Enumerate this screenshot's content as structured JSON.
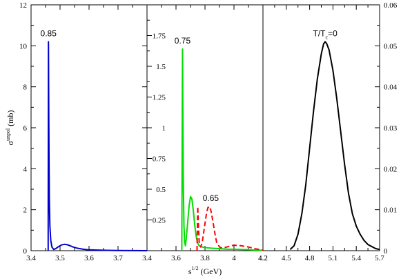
{
  "chart_data": [
    {
      "type": "line",
      "panel": "left",
      "xlim": [
        3.4,
        3.8
      ],
      "ylim": [
        0,
        12
      ],
      "x_ticks": [
        3.4,
        3.5,
        3.6,
        3.7,
        3.8
      ],
      "x_tick_labels": [
        "3.4",
        "3.5",
        "3.6",
        "3.7",
        ""
      ],
      "y_ticks": [
        0,
        2,
        4,
        6,
        8,
        10,
        12
      ],
      "y_tick_labels": [
        "0",
        "2",
        "4",
        "6",
        "8",
        "10",
        "12"
      ],
      "ylabel_main": "σ",
      "ylabel_sup": "unpol",
      "ylabel_unit": " (mb)",
      "series": [
        {
          "style": "solid",
          "color": "#0000cc",
          "x": [
            3.459,
            3.46,
            3.461,
            3.462,
            3.463,
            3.465,
            3.468,
            3.472,
            3.478,
            3.485,
            3.495,
            3.505,
            3.515,
            3.525,
            3.535,
            3.545,
            3.56,
            3.58,
            3.6,
            3.65,
            3.7,
            3.75,
            3.8
          ],
          "y": [
            0,
            10.2,
            7.0,
            4.5,
            2.5,
            1.2,
            0.5,
            0.18,
            0.06,
            0.1,
            0.2,
            0.28,
            0.31,
            0.29,
            0.24,
            0.18,
            0.12,
            0.07,
            0.04,
            0.02,
            0.01,
            0.005,
            0
          ]
        }
      ],
      "annotations": [
        {
          "text": "0.85",
          "x": 3.46,
          "y": 10.2
        }
      ]
    },
    {
      "type": "line",
      "panel": "middle",
      "xlim": [
        3.4,
        4.2
      ],
      "ylim": [
        0,
        2.0
      ],
      "x_ticks": [
        3.4,
        3.6,
        3.8,
        4.0,
        4.2
      ],
      "x_tick_labels": [
        "3.4",
        "3.6",
        "3.8",
        "4",
        "4.2"
      ],
      "y_ticks": [
        0.25,
        0.5,
        0.75,
        1.0,
        1.25,
        1.5,
        1.75
      ],
      "y_tick_labels": [
        "0.25",
        "0.5",
        "0.75",
        "1",
        "1.25",
        "1.5",
        "1.75"
      ],
      "series": [
        {
          "style": "solid",
          "color": "#00dd00",
          "x": [
            3.64,
            3.645,
            3.65,
            3.655,
            3.66,
            3.665,
            3.67,
            3.68,
            3.69,
            3.7,
            3.71,
            3.72,
            3.73,
            3.74,
            3.75,
            3.76,
            3.78,
            3.8,
            3.85,
            3.9,
            3.95,
            4.0,
            4.05,
            4.1,
            4.15,
            4.2
          ],
          "y": [
            0,
            1.64,
            0.6,
            0.2,
            0.07,
            0.04,
            0.09,
            0.22,
            0.36,
            0.44,
            0.42,
            0.32,
            0.2,
            0.11,
            0.06,
            0.04,
            0.03,
            0.025,
            0.02,
            0.016,
            0.012,
            0.012,
            0.01,
            0.008,
            0.005,
            0.003
          ]
        },
        {
          "style": "dashed",
          "color": "#ff0000",
          "x": [
            3.745,
            3.75,
            3.755,
            3.76,
            3.77,
            3.78,
            3.79,
            3.8,
            3.81,
            3.82,
            3.83,
            3.84,
            3.85,
            3.86,
            3.87,
            3.88,
            3.9,
            3.92,
            3.95,
            4.0,
            4.05,
            4.1,
            4.15,
            4.2
          ],
          "y": [
            0,
            0.36,
            0.2,
            0.07,
            0.03,
            0.06,
            0.14,
            0.22,
            0.3,
            0.35,
            0.36,
            0.33,
            0.27,
            0.2,
            0.13,
            0.07,
            0.03,
            0.02,
            0.03,
            0.045,
            0.04,
            0.03,
            0.015,
            0.005
          ]
        }
      ],
      "annotations": [
        {
          "text": "0.75",
          "x": 3.645,
          "y": 1.64
        },
        {
          "text": "0.65",
          "x": 3.84,
          "y": 0.36
        }
      ]
    },
    {
      "type": "line",
      "panel": "right",
      "xlim": [
        4.2,
        5.7
      ],
      "ylim": [
        0,
        0.06
      ],
      "x_ticks": [
        4.2,
        4.5,
        4.8,
        5.1,
        5.4,
        5.7
      ],
      "x_tick_labels": [
        "4.2",
        "4.5",
        "4.8",
        "5.1",
        "5.4",
        "5.7"
      ],
      "y_ticks": [
        0,
        0.01,
        0.02,
        0.03,
        0.04,
        0.05,
        0.06
      ],
      "y_tick_labels": [
        "0",
        "0.01",
        "0.02",
        "0.03",
        "0.04",
        "0.05",
        "0.06"
      ],
      "series": [
        {
          "style": "solid",
          "color": "#000000",
          "x": [
            4.55,
            4.6,
            4.65,
            4.7,
            4.75,
            4.8,
            4.85,
            4.9,
            4.95,
            4.98,
            5.0,
            5.02,
            5.05,
            5.1,
            5.15,
            5.2,
            5.25,
            5.3,
            5.35,
            5.4,
            5.45,
            5.5,
            5.55,
            5.6,
            5.65,
            5.7
          ],
          "y": [
            0.0003,
            0.0012,
            0.004,
            0.009,
            0.016,
            0.025,
            0.034,
            0.042,
            0.048,
            0.0505,
            0.051,
            0.0505,
            0.049,
            0.044,
            0.037,
            0.029,
            0.021,
            0.014,
            0.009,
            0.006,
            0.004,
            0.0025,
            0.0015,
            0.001,
            0.0005,
            0.0003
          ]
        }
      ],
      "annotations": [
        {
          "text": "T/T",
          "sub": "c",
          "suffix": "=0",
          "x": 5.0,
          "y": 0.051
        }
      ]
    }
  ],
  "xlabel": {
    "main": "s",
    "sup": "1/2",
    "unit": " (GeV)"
  }
}
